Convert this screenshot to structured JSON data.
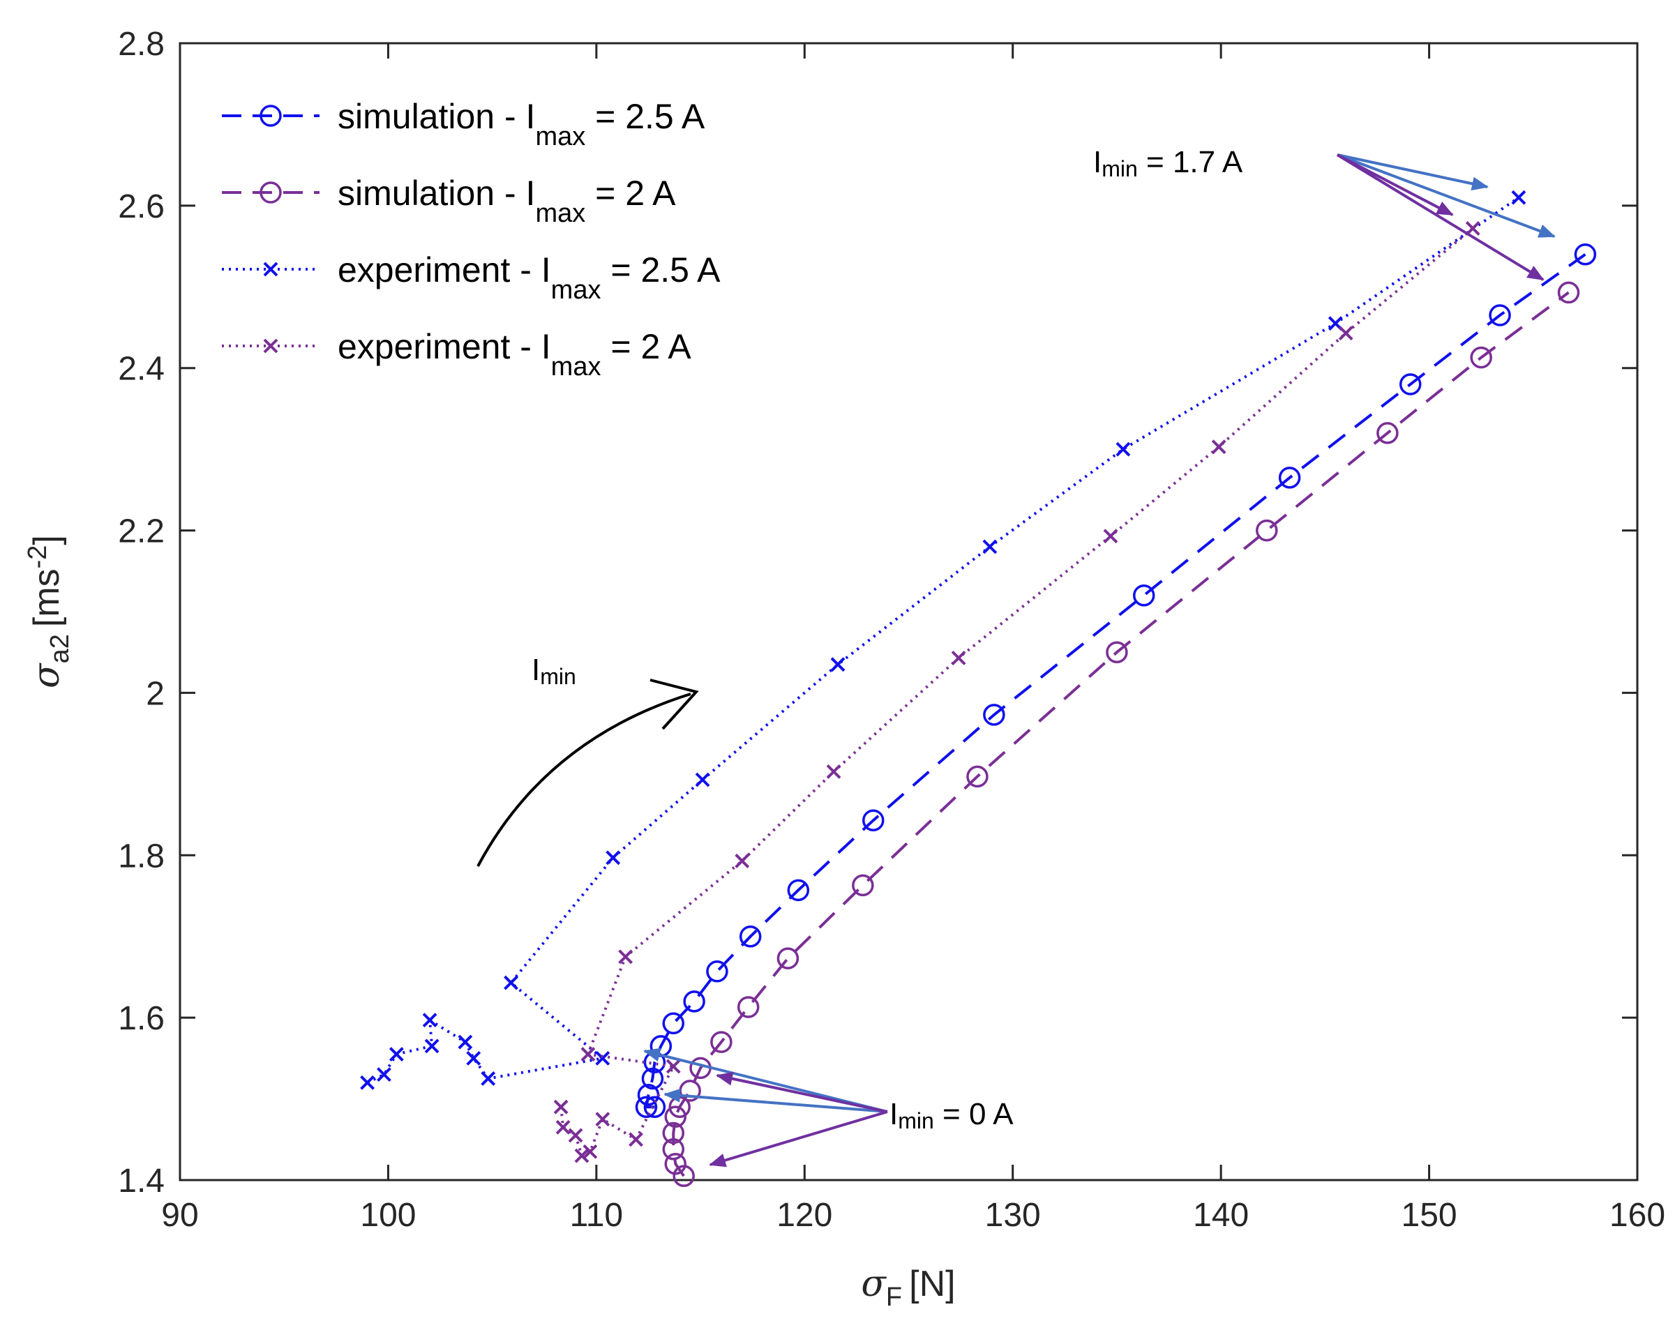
{
  "chart_data": {
    "type": "line",
    "xlabel": {
      "symbol": "σ",
      "sub": "F",
      "unit": "[N]"
    },
    "ylabel": {
      "symbol": "σ",
      "sub": "a2",
      "unit_pre": "[ms",
      "unit_sup": "-2",
      "unit_post": "]"
    },
    "xlim": [
      90,
      160
    ],
    "ylim": [
      1.4,
      2.8
    ],
    "xticks": [
      "90",
      "100",
      "110",
      "120",
      "130",
      "140",
      "150",
      "160"
    ],
    "yticks": [
      "1.4",
      "1.6",
      "1.8",
      "2",
      "2.2",
      "2.4",
      "2.6",
      "2.8"
    ],
    "series": [
      {
        "name": "simulation - I_max = 2.5 A",
        "legend_main": "simulation - I",
        "legend_sub": "max",
        "legend_tail": " = 2.5 A",
        "color": "#1010ee",
        "dash": "dashed",
        "marker": "circle",
        "x": [
          112.8,
          112.4,
          112.5,
          112.7,
          112.8,
          113.1,
          113.7,
          114.7,
          115.8,
          117.4,
          119.7,
          123.3,
          129.1,
          136.3,
          143.3,
          149.1,
          153.4,
          157.5
        ],
        "y": [
          1.49,
          1.49,
          1.505,
          1.525,
          1.545,
          1.565,
          1.593,
          1.62,
          1.657,
          1.7,
          1.757,
          1.843,
          1.973,
          2.12,
          2.265,
          2.38,
          2.465,
          2.54
        ]
      },
      {
        "name": "simulation - I_max = 2 A",
        "legend_main": "simulation - I",
        "legend_sub": "max",
        "legend_tail": " = 2 A",
        "color": "#7a2f95",
        "dash": "dashed",
        "marker": "circle",
        "x": [
          114.2,
          113.8,
          113.7,
          113.7,
          113.8,
          114.0,
          114.5,
          115.0,
          116.0,
          117.3,
          119.2,
          122.8,
          128.3,
          135.0,
          142.2,
          148.0,
          152.5,
          156.7
        ],
        "y": [
          1.405,
          1.42,
          1.438,
          1.458,
          1.478,
          1.49,
          1.51,
          1.538,
          1.57,
          1.613,
          1.673,
          1.763,
          1.897,
          2.05,
          2.2,
          2.32,
          2.413,
          2.493
        ]
      },
      {
        "name": "experiment - I_max = 2.5 A",
        "legend_main": "experiment - I",
        "legend_sub": "max",
        "legend_tail": " = 2.5 A",
        "color": "#1010ee",
        "dash": "dotted",
        "marker": "x",
        "x": [
          99.0,
          99.8,
          100.4,
          102.1,
          102.0,
          103.7,
          104.1,
          104.8,
          110.3,
          105.9,
          110.8,
          115.1,
          121.6,
          128.9,
          135.3,
          145.5,
          154.3
        ],
        "y": [
          1.52,
          1.53,
          1.555,
          1.565,
          1.597,
          1.57,
          1.55,
          1.525,
          1.55,
          1.643,
          1.797,
          1.893,
          2.035,
          2.18,
          2.3,
          2.455,
          2.61
        ]
      },
      {
        "name": "experiment - I_max = 2 A",
        "legend_main": "experiment - I",
        "legend_sub": "max",
        "legend_tail": " = 2 A",
        "color": "#7a2f95",
        "dash": "dotted",
        "marker": "x",
        "x": [
          108.3,
          108.4,
          109.0,
          109.3,
          109.7,
          110.3,
          111.9,
          113.7,
          109.6,
          111.4,
          117.0,
          121.4,
          127.4,
          134.7,
          139.9,
          146.0,
          152.1
        ],
        "y": [
          1.49,
          1.465,
          1.455,
          1.43,
          1.435,
          1.475,
          1.45,
          1.54,
          1.555,
          1.675,
          1.793,
          1.903,
          2.043,
          2.193,
          2.303,
          2.443,
          2.572
        ]
      }
    ],
    "annotations": {
      "imin_top": {
        "main": "I",
        "sub": "min",
        "tail": " = 1.7 A"
      },
      "imin_bottom": {
        "main": "I",
        "sub": "min",
        "tail": " = 0 A"
      },
      "imin_trend": {
        "main": "I",
        "sub": "min"
      }
    },
    "arrow_colors": {
      "blue": "#4472c4",
      "purple": "#7030a0",
      "black": "#000000"
    }
  }
}
